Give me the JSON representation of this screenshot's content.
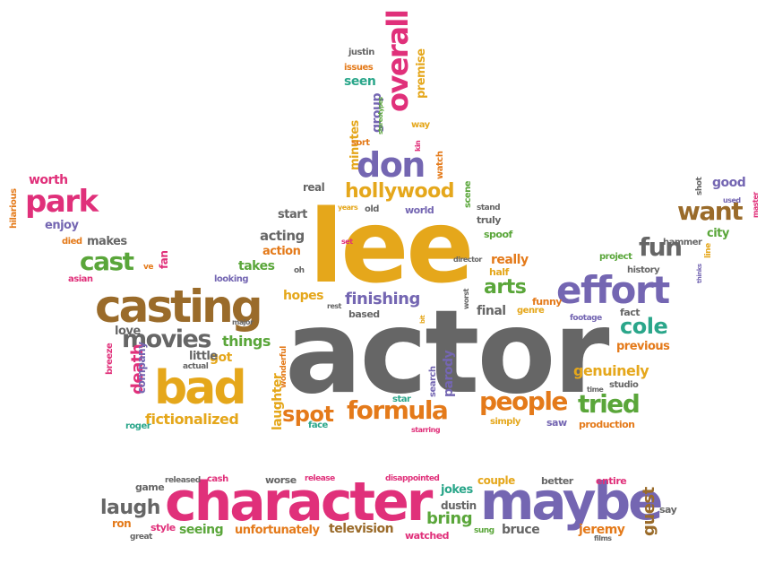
{
  "palette": {
    "pink": "#e0307a",
    "purple": "#7466b2",
    "gold": "#e5a71b",
    "green": "#5aa63a",
    "gray": "#666666",
    "orange": "#e47a1a",
    "brown": "#9a6b2a",
    "teal": "#2aa68a"
  },
  "words": [
    {
      "t": "actor",
      "c": "gray"
    },
    {
      "t": "lee",
      "c": "gold"
    },
    {
      "t": "character",
      "c": "pink"
    },
    {
      "t": "maybe",
      "c": "purple"
    },
    {
      "t": "casting",
      "c": "brown"
    },
    {
      "t": "effort",
      "c": "purple"
    },
    {
      "t": "bad",
      "c": "gold"
    },
    {
      "t": "don",
      "c": "purple"
    },
    {
      "t": "park",
      "c": "pink"
    },
    {
      "t": "movies",
      "c": "gray"
    },
    {
      "t": "formula",
      "c": "orange"
    },
    {
      "t": "people",
      "c": "orange"
    },
    {
      "t": "hollywood",
      "c": "gold"
    },
    {
      "t": "overall",
      "c": "pink"
    },
    {
      "t": "cast",
      "c": "green"
    },
    {
      "t": "want",
      "c": "brown"
    },
    {
      "t": "fun",
      "c": "gray"
    },
    {
      "t": "tried",
      "c": "green"
    },
    {
      "t": "cole",
      "c": "teal"
    },
    {
      "t": "spot",
      "c": "orange"
    },
    {
      "t": "laugh",
      "c": "gray"
    },
    {
      "t": "arts",
      "c": "green"
    },
    {
      "t": "finishing",
      "c": "purple"
    },
    {
      "t": "things",
      "c": "green"
    },
    {
      "t": "genuinely",
      "c": "gold"
    },
    {
      "t": "fictionalized",
      "c": "gold"
    },
    {
      "t": "death",
      "c": "pink"
    },
    {
      "t": "guest",
      "c": "brown"
    },
    {
      "t": "bring",
      "c": "green"
    },
    {
      "t": "acting",
      "c": "gray"
    },
    {
      "t": "hopes",
      "c": "gold"
    },
    {
      "t": "takes",
      "c": "green"
    },
    {
      "t": "final",
      "c": "gray"
    },
    {
      "t": "worth",
      "c": "pink"
    },
    {
      "t": "enjoy",
      "c": "purple"
    },
    {
      "t": "good",
      "c": "purple"
    },
    {
      "t": "seen",
      "c": "teal"
    },
    {
      "t": "television",
      "c": "brown"
    },
    {
      "t": "bruce",
      "c": "gray"
    },
    {
      "t": "jeremy",
      "c": "orange"
    },
    {
      "t": "seeing",
      "c": "green"
    },
    {
      "t": "unfortunately",
      "c": "orange"
    },
    {
      "t": "previous",
      "c": "orange"
    },
    {
      "t": "parody",
      "c": "purple"
    },
    {
      "t": "really",
      "c": "orange"
    },
    {
      "t": "group",
      "c": "purple"
    },
    {
      "t": "minutes",
      "c": "gold"
    },
    {
      "t": "premise",
      "c": "gold"
    },
    {
      "t": "laughter",
      "c": "gold"
    },
    {
      "t": "got",
      "c": "gold"
    },
    {
      "t": "little",
      "c": "gray"
    },
    {
      "t": "love",
      "c": "gray"
    },
    {
      "t": "makes",
      "c": "gray"
    },
    {
      "t": "company",
      "c": "purple"
    },
    {
      "t": "city",
      "c": "green"
    },
    {
      "t": "start",
      "c": "gray"
    },
    {
      "t": "action",
      "c": "orange"
    },
    {
      "t": "real",
      "c": "gray"
    },
    {
      "t": "jokes",
      "c": "teal"
    },
    {
      "t": "couple",
      "c": "gold"
    },
    {
      "t": "dustin",
      "c": "gray"
    },
    {
      "t": "watched",
      "c": "pink"
    },
    {
      "t": "ron",
      "c": "orange"
    },
    {
      "t": "style",
      "c": "pink"
    },
    {
      "t": "game",
      "c": "gray"
    },
    {
      "t": "cash",
      "c": "pink"
    },
    {
      "t": "worse",
      "c": "gray"
    },
    {
      "t": "better",
      "c": "gray"
    },
    {
      "t": "entire",
      "c": "pink"
    },
    {
      "t": "say",
      "c": "gray"
    },
    {
      "t": "released",
      "c": "gray"
    },
    {
      "t": "release",
      "c": "pink"
    },
    {
      "t": "disappointed",
      "c": "pink"
    },
    {
      "t": "great",
      "c": "gray"
    },
    {
      "t": "sung",
      "c": "green"
    },
    {
      "t": "films",
      "c": "gray"
    },
    {
      "t": "production",
      "c": "orange"
    },
    {
      "t": "saw",
      "c": "purple"
    },
    {
      "t": "simply",
      "c": "gold"
    },
    {
      "t": "starring",
      "c": "pink"
    },
    {
      "t": "face",
      "c": "teal"
    },
    {
      "t": "search",
      "c": "purple"
    },
    {
      "t": "star",
      "c": "teal"
    },
    {
      "t": "funny",
      "c": "orange"
    },
    {
      "t": "genre",
      "c": "gold"
    },
    {
      "t": "based",
      "c": "gray"
    },
    {
      "t": "half",
      "c": "gold"
    },
    {
      "t": "spoof",
      "c": "green"
    },
    {
      "t": "truly",
      "c": "gray"
    },
    {
      "t": "world",
      "c": "purple"
    },
    {
      "t": "old",
      "c": "gray"
    },
    {
      "t": "scene",
      "c": "green"
    },
    {
      "t": "stand",
      "c": "gray"
    },
    {
      "t": "watch",
      "c": "orange"
    },
    {
      "t": "way",
      "c": "gold"
    },
    {
      "t": "sort",
      "c": "orange"
    },
    {
      "t": "issues",
      "c": "orange"
    },
    {
      "t": "justin",
      "c": "gray"
    },
    {
      "t": "kin",
      "c": "pink"
    },
    {
      "t": "stereotypes",
      "c": "green"
    },
    {
      "t": "hilarious",
      "c": "orange"
    },
    {
      "t": "died",
      "c": "orange"
    },
    {
      "t": "asian",
      "c": "pink"
    },
    {
      "t": "ve",
      "c": "orange"
    },
    {
      "t": "fan",
      "c": "pink"
    },
    {
      "t": "looking",
      "c": "purple"
    },
    {
      "t": "oh",
      "c": "gray"
    },
    {
      "t": "rest",
      "c": "gray"
    },
    {
      "t": "breeze",
      "c": "pink"
    },
    {
      "t": "actual",
      "c": "gray"
    },
    {
      "t": "roger",
      "c": "teal"
    },
    {
      "t": "major",
      "c": "gray"
    },
    {
      "t": "wonderful",
      "c": "orange"
    },
    {
      "t": "history",
      "c": "gray"
    },
    {
      "t": "project",
      "c": "green"
    },
    {
      "t": "hammer",
      "c": "gray"
    },
    {
      "t": "line",
      "c": "gold"
    },
    {
      "t": "shot",
      "c": "gray"
    },
    {
      "t": "used",
      "c": "purple"
    },
    {
      "t": "master",
      "c": "pink"
    },
    {
      "t": "thinks",
      "c": "purple"
    },
    {
      "t": "footage",
      "c": "purple"
    },
    {
      "t": "fact",
      "c": "gray"
    },
    {
      "t": "time",
      "c": "gray"
    },
    {
      "t": "studio",
      "c": "gray"
    },
    {
      "t": "director",
      "c": "gray"
    },
    {
      "t": "set",
      "c": "pink"
    },
    {
      "t": "years",
      "c": "gold"
    },
    {
      "t": "worst",
      "c": "gray"
    },
    {
      "t": "bit",
      "c": "gold"
    }
  ]
}
